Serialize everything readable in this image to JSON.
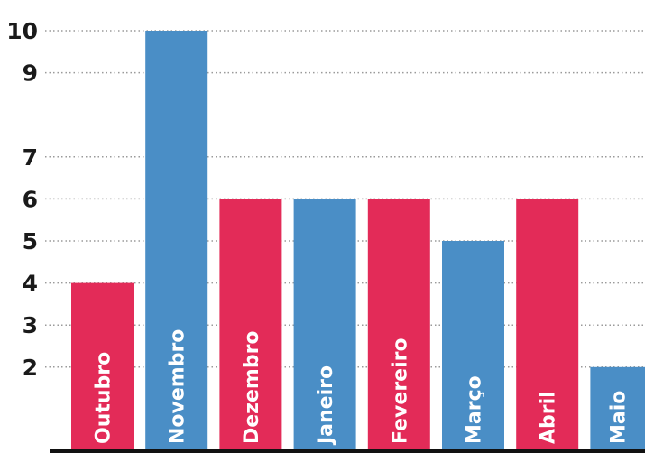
{
  "chart_data": {
    "type": "bar",
    "categories": [
      "Outubro",
      "Novembro",
      "Dezembro",
      "Janeiro",
      "Fevereiro",
      "Março",
      "Abril",
      "Maio"
    ],
    "values": [
      4,
      10,
      6,
      6,
      6,
      5,
      6,
      2
    ],
    "bar_colors": [
      "#e32b58",
      "#4a8ec6",
      "#e32b58",
      "#4a8ec6",
      "#e32b58",
      "#4a8ec6",
      "#e32b58",
      "#4a8ec6"
    ],
    "y_ticks": [
      2,
      3,
      4,
      5,
      6,
      7,
      9,
      10
    ],
    "ylim": [
      0,
      10
    ],
    "grid": true,
    "legend": false,
    "title": "",
    "xlabel": "",
    "ylabel": "",
    "colors": {
      "red": "#e32b58",
      "blue": "#4a8ec6",
      "grid": "#9a9a9a",
      "axis": "#111111"
    }
  }
}
